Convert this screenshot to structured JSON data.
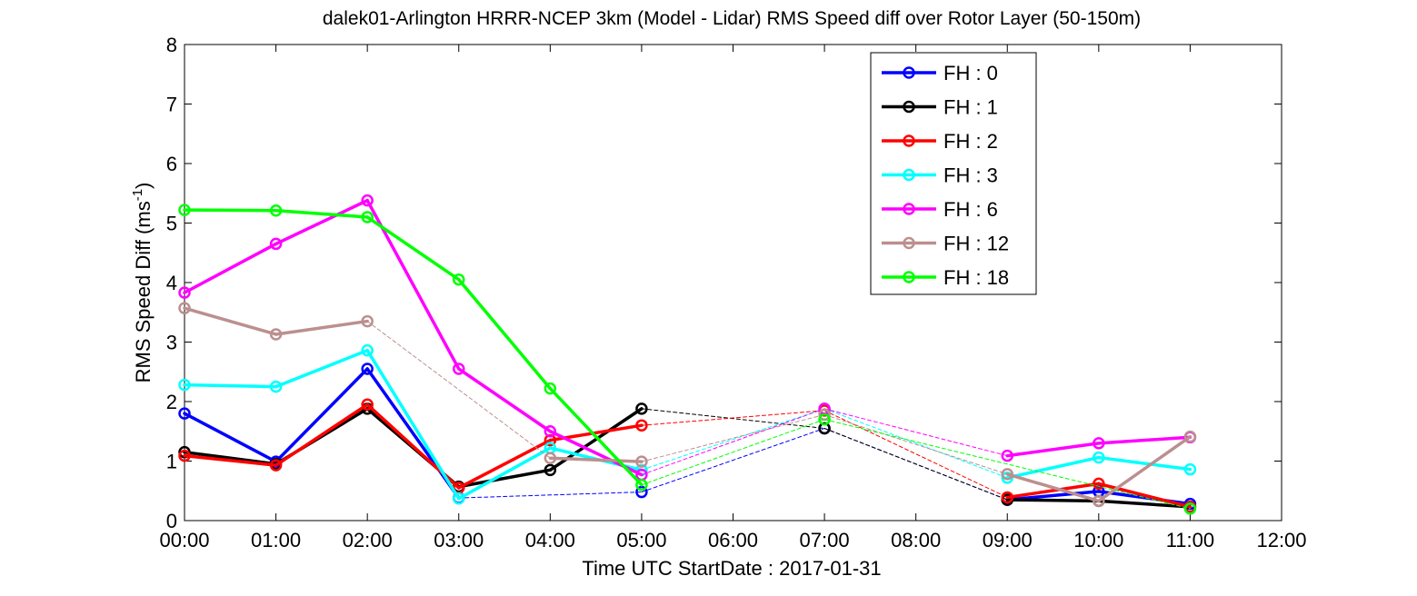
{
  "chart_data": {
    "type": "line",
    "title": "dalek01-Arlington HRRR-NCEP 3km (Model - Lidar) RMS Speed diff over Rotor Layer (50-150m)",
    "xlabel": "Time UTC    StartDate : 2017-01-31",
    "ylabel_main": "RMS Speed Diff (ms",
    "ylabel_sup": "-1",
    "ylabel_end": ")",
    "xlim": [
      0,
      12
    ],
    "ylim": [
      0,
      8
    ],
    "x_ticks": [
      0,
      1,
      2,
      3,
      4,
      5,
      6,
      7,
      8,
      9,
      10,
      11,
      12
    ],
    "x_tick_labels": [
      "00:00",
      "01:00",
      "02:00",
      "03:00",
      "04:00",
      "05:00",
      "06:00",
      "07:00",
      "08:00",
      "09:00",
      "10:00",
      "11:00",
      "12:00"
    ],
    "y_ticks": [
      0,
      1,
      2,
      3,
      4,
      5,
      6,
      7,
      8
    ],
    "y_tick_labels": [
      "0",
      "1",
      "2",
      "3",
      "4",
      "5",
      "6",
      "7",
      "8"
    ],
    "legend_position": "top-right",
    "x": [
      0,
      1,
      2,
      3,
      4,
      5,
      7,
      9,
      10,
      11
    ],
    "series": [
      {
        "name": "FH : 0",
        "color": "#0000ff",
        "values": [
          1.8,
          0.99,
          2.55,
          0.38,
          null,
          0.48,
          1.55,
          0.35,
          0.49,
          0.28
        ]
      },
      {
        "name": "FH : 1",
        "color": "#000000",
        "values": [
          1.15,
          0.95,
          1.88,
          0.57,
          0.85,
          1.88,
          1.55,
          0.35,
          0.33,
          0.23
        ]
      },
      {
        "name": "FH : 2",
        "color": "#ff0000",
        "values": [
          1.09,
          0.93,
          1.95,
          0.55,
          1.35,
          1.6,
          1.85,
          0.39,
          0.62,
          0.23
        ]
      },
      {
        "name": "FH : 3",
        "color": "#00ffff",
        "values": [
          2.28,
          2.25,
          2.86,
          0.37,
          1.22,
          0.85,
          1.88,
          0.72,
          1.06,
          0.86
        ]
      },
      {
        "name": "FH : 6",
        "color": "#ff00ff",
        "values": [
          3.83,
          4.65,
          5.38,
          2.55,
          1.5,
          0.77,
          1.88,
          1.09,
          1.3,
          1.4
        ]
      },
      {
        "name": "FH : 12",
        "color": "#bc8f8f",
        "values": [
          3.57,
          3.13,
          3.35,
          null,
          1.05,
          0.99,
          1.78,
          0.78,
          0.33,
          1.41
        ]
      },
      {
        "name": "FH : 18",
        "color": "#00ff00",
        "values": [
          5.22,
          5.21,
          5.1,
          4.05,
          2.22,
          0.6,
          1.7,
          null,
          null,
          0.2
        ]
      }
    ]
  }
}
